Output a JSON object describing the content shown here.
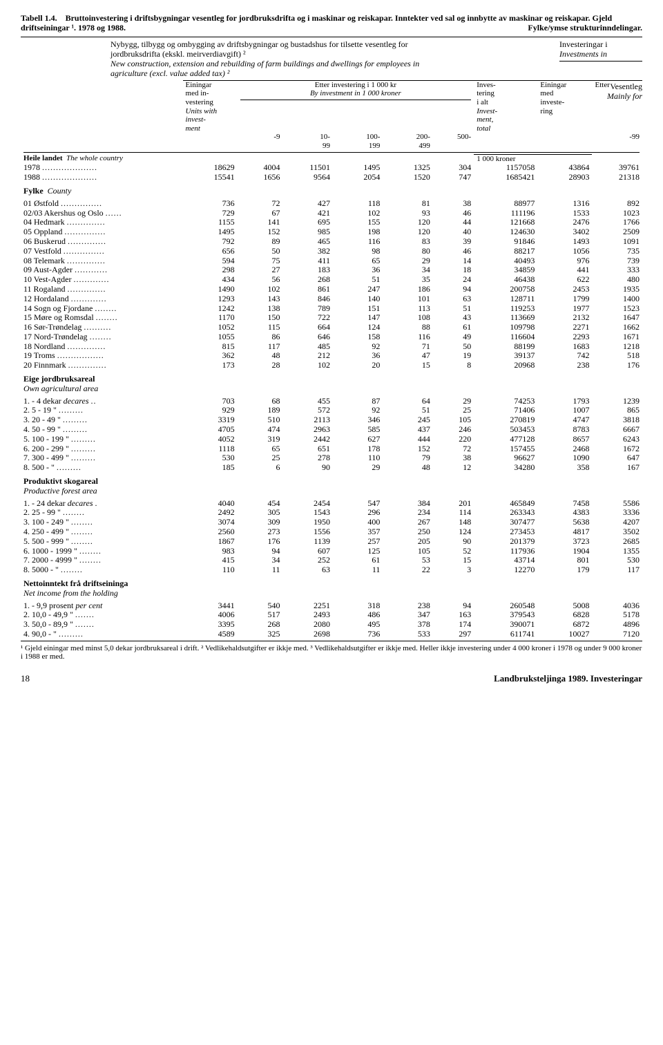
{
  "title_label": "Tabell 1.4.",
  "title_main": "Bruttoinvestering i driftsbygningar vesentleg for jordbruksdrifta og i maskinar og reiskapar. Inntekter ved sal og innbytte av maskinar og reiskapar. Gjeld driftseiningar ¹. 1978 og 1988.",
  "title_right": "Fylke/ymse strukturinndelingar.",
  "header_desc_no": "Nybygg, tilbygg og ombygging av driftsbygningar og bustadshus for tilsette vesentleg for jordbruksdrifta (ekskl. meirverdiavgift) ²",
  "header_desc_en": "New construction, extension and rebuilding of farm buildings and dwellings for employees in agriculture (excl. value added tax) ²",
  "invest_no": "Investeringar i",
  "invest_en": "Investments in",
  "vesentleg": "Vesentleg",
  "mainly": "Mainly for",
  "col_einingar": "Einingar med investering",
  "col_units": "Units with investment",
  "col_etter": "Etter investering i 1 000 kr",
  "col_by": "By investment in 1 000 kroner",
  "col_invest": "Investering i alt",
  "col_invest_en": "Investment, total",
  "col_ein_med": "Einingar med investering",
  "col_etter2": "Etter",
  "c_9": "-9",
  "c_10_99": "10-99",
  "c_100_199": "100-199",
  "c_200_499": "200-499",
  "c_500": "500-",
  "c_1000": "1 000 kroner",
  "c_m99": "-99",
  "sec_whole": "Heile landet",
  "sec_whole_en": "The whole country",
  "sec_county": "Fylke",
  "sec_county_en": "County",
  "sec_eige": "Eige jordbruksareal",
  "sec_eige_en": "Own agricultural area",
  "sec_skog": "Produktivt skogareal",
  "sec_skog_en": "Productive forest area",
  "sec_netto": "Nettoinntekt frå driftseininga",
  "sec_netto_en": "Net income from the holding",
  "rows_years": [
    {
      "label": "1978",
      "dots": "....................",
      "v": [
        "18629",
        "4004",
        "11501",
        "1495",
        "1325",
        "304",
        "1157058",
        "43864",
        "39761"
      ]
    },
    {
      "label": "1988",
      "dots": "....................",
      "v": [
        "15541",
        "1656",
        "9564",
        "2054",
        "1520",
        "747",
        "1685421",
        "28903",
        "21318"
      ]
    }
  ],
  "rows_county": [
    {
      "label": "01 Østfold",
      "dots": "...............",
      "v": [
        "736",
        "72",
        "427",
        "118",
        "81",
        "38",
        "88977",
        "1316",
        "892"
      ]
    },
    {
      "label": "02/03 Akershus og Oslo",
      "dots": "......",
      "v": [
        "729",
        "67",
        "421",
        "102",
        "93",
        "46",
        "111196",
        "1533",
        "1023"
      ]
    },
    {
      "label": "04 Hedmark",
      "dots": "..............",
      "v": [
        "1155",
        "141",
        "695",
        "155",
        "120",
        "44",
        "121668",
        "2476",
        "1766"
      ]
    },
    {
      "label": "05 Oppland",
      "dots": "...............",
      "v": [
        "1495",
        "152",
        "985",
        "198",
        "120",
        "40",
        "124630",
        "3402",
        "2509"
      ]
    },
    {
      "label": "06 Buskerud",
      "dots": "..............",
      "v": [
        "792",
        "89",
        "465",
        "116",
        "83",
        "39",
        "91846",
        "1493",
        "1091"
      ]
    },
    {
      "label": "07 Vestfold",
      "dots": "...............",
      "v": [
        "656",
        "50",
        "382",
        "98",
        "80",
        "46",
        "88217",
        "1056",
        "735"
      ]
    },
    {
      "label": "08 Telemark",
      "dots": "..............",
      "v": [
        "594",
        "75",
        "411",
        "65",
        "29",
        "14",
        "40493",
        "976",
        "739"
      ]
    },
    {
      "label": "09 Aust-Agder",
      "dots": "............",
      "v": [
        "298",
        "27",
        "183",
        "36",
        "34",
        "18",
        "34859",
        "441",
        "333"
      ]
    },
    {
      "label": "10 Vest-Agder",
      "dots": ".............",
      "v": [
        "434",
        "56",
        "268",
        "51",
        "35",
        "24",
        "46438",
        "622",
        "480"
      ]
    },
    {
      "label": "11 Rogaland",
      "dots": "..............",
      "v": [
        "1490",
        "102",
        "861",
        "247",
        "186",
        "94",
        "200758",
        "2453",
        "1935"
      ]
    },
    {
      "label": "12 Hordaland",
      "dots": ".............",
      "v": [
        "1293",
        "143",
        "846",
        "140",
        "101",
        "63",
        "128711",
        "1799",
        "1400"
      ]
    },
    {
      "label": "14 Sogn og Fjordane",
      "dots": "........",
      "v": [
        "1242",
        "138",
        "789",
        "151",
        "113",
        "51",
        "119253",
        "1977",
        "1523"
      ]
    },
    {
      "label": "15 Møre og Romsdal",
      "dots": "........",
      "v": [
        "1170",
        "150",
        "722",
        "147",
        "108",
        "43",
        "113669",
        "2132",
        "1647"
      ]
    },
    {
      "label": "16 Sør-Trøndelag",
      "dots": "..........",
      "v": [
        "1052",
        "115",
        "664",
        "124",
        "88",
        "61",
        "109798",
        "2271",
        "1662"
      ]
    },
    {
      "label": "17 Nord-Trøndelag",
      "dots": "........",
      "v": [
        "1055",
        "86",
        "646",
        "158",
        "116",
        "49",
        "116604",
        "2293",
        "1671"
      ]
    },
    {
      "label": "18 Nordland",
      "dots": "..............",
      "v": [
        "815",
        "117",
        "485",
        "92",
        "71",
        "50",
        "88199",
        "1683",
        "1218"
      ]
    },
    {
      "label": "19 Troms",
      "dots": ".................",
      "v": [
        "362",
        "48",
        "212",
        "36",
        "47",
        "19",
        "39137",
        "742",
        "518"
      ]
    },
    {
      "label": "20 Finnmark",
      "dots": "..............",
      "v": [
        "173",
        "28",
        "102",
        "20",
        "15",
        "8",
        "20968",
        "238",
        "176"
      ]
    }
  ],
  "rows_eige": [
    {
      "label": "1.     -    4 dekar",
      "it": "decares",
      "dots": " ..",
      "v": [
        "703",
        "68",
        "455",
        "87",
        "64",
        "29",
        "74253",
        "1793",
        "1239"
      ]
    },
    {
      "label": "2.    5 -   19   \"",
      "dots": ".........",
      "v": [
        "929",
        "189",
        "572",
        "92",
        "51",
        "25",
        "71406",
        "1007",
        "865"
      ]
    },
    {
      "label": "3.   20 -   49   \"",
      "dots": ".........",
      "v": [
        "3319",
        "510",
        "2113",
        "346",
        "245",
        "105",
        "270819",
        "4747",
        "3818"
      ]
    },
    {
      "label": "4.   50 -   99   \"",
      "dots": ".........",
      "v": [
        "4705",
        "474",
        "2963",
        "585",
        "437",
        "246",
        "503453",
        "8783",
        "6667"
      ]
    },
    {
      "label": "5.  100 -  199   \"",
      "dots": ".........",
      "v": [
        "4052",
        "319",
        "2442",
        "627",
        "444",
        "220",
        "477128",
        "8657",
        "6243"
      ]
    },
    {
      "label": "6.  200 -  299   \"",
      "dots": ".........",
      "v": [
        "1118",
        "65",
        "651",
        "178",
        "152",
        "72",
        "157455",
        "2468",
        "1672"
      ]
    },
    {
      "label": "7.  300 -  499   \"",
      "dots": ".........",
      "v": [
        "530",
        "25",
        "278",
        "110",
        "79",
        "38",
        "96627",
        "1090",
        "647"
      ]
    },
    {
      "label": "8.  500 -        \"",
      "dots": ".........",
      "v": [
        "185",
        "6",
        "90",
        "29",
        "48",
        "12",
        "34280",
        "358",
        "167"
      ]
    }
  ],
  "rows_skog": [
    {
      "label": "1.      -   24 dekar",
      "it": "decares",
      "dots": " .",
      "v": [
        "4040",
        "454",
        "2454",
        "547",
        "384",
        "201",
        "465849",
        "7458",
        "5586"
      ]
    },
    {
      "label": "2.    25 -   99   \"",
      "dots": "........",
      "v": [
        "2492",
        "305",
        "1543",
        "296",
        "234",
        "114",
        "263343",
        "4383",
        "3336"
      ]
    },
    {
      "label": "3.   100 -  249   \"",
      "dots": "........",
      "v": [
        "3074",
        "309",
        "1950",
        "400",
        "267",
        "148",
        "307477",
        "5638",
        "4207"
      ]
    },
    {
      "label": "4.   250 -  499   \"",
      "dots": "........",
      "v": [
        "2560",
        "273",
        "1556",
        "357",
        "250",
        "124",
        "273453",
        "4817",
        "3502"
      ]
    },
    {
      "label": "5.   500 -  999   \"",
      "dots": "........",
      "v": [
        "1867",
        "176",
        "1139",
        "257",
        "205",
        "90",
        "201379",
        "3723",
        "2685"
      ]
    },
    {
      "label": "6.  1000 - 1999   \"",
      "dots": "........",
      "v": [
        "983",
        "94",
        "607",
        "125",
        "105",
        "52",
        "117936",
        "1904",
        "1355"
      ]
    },
    {
      "label": "7.  2000 - 4999   \"",
      "dots": "........",
      "v": [
        "415",
        "34",
        "252",
        "61",
        "53",
        "15",
        "43714",
        "801",
        "530"
      ]
    },
    {
      "label": "8.  5000 -        \"",
      "dots": "........",
      "v": [
        "110",
        "11",
        "63",
        "11",
        "22",
        "3",
        "12270",
        "179",
        "117"
      ]
    }
  ],
  "rows_netto": [
    {
      "label": "1.      -  9,9 prosent",
      "it": "per cent",
      "dots": "",
      "v": [
        "3441",
        "540",
        "2251",
        "318",
        "238",
        "94",
        "260548",
        "5008",
        "4036"
      ]
    },
    {
      "label": "2.  10,0 - 49,9   \"",
      "dots": ".......",
      "v": [
        "4006",
        "517",
        "2493",
        "486",
        "347",
        "163",
        "379543",
        "6828",
        "5178"
      ]
    },
    {
      "label": "3.  50,0 - 89,9   \"",
      "dots": ".......",
      "v": [
        "3395",
        "268",
        "2080",
        "495",
        "378",
        "174",
        "390071",
        "6872",
        "4896"
      ]
    },
    {
      "label": "4.  90,0 -        \"",
      "dots": ".........",
      "v": [
        "4589",
        "325",
        "2698",
        "736",
        "533",
        "297",
        "611741",
        "10027",
        "7120"
      ]
    }
  ],
  "footnote": "¹ Gjeld einingar med minst 5,0 dekar jordbruksareal i drift. ² Vedlikehaldsutgifter er ikkje med. ³ Vedlikehaldsutgifter er ikkje med. Heller ikkje investering under 4 000 kroner i 1978 og under 9 000 kroner i 1988 er med.",
  "page_num": "18",
  "page_source": "Landbruksteljinga 1989.  Investeringar"
}
